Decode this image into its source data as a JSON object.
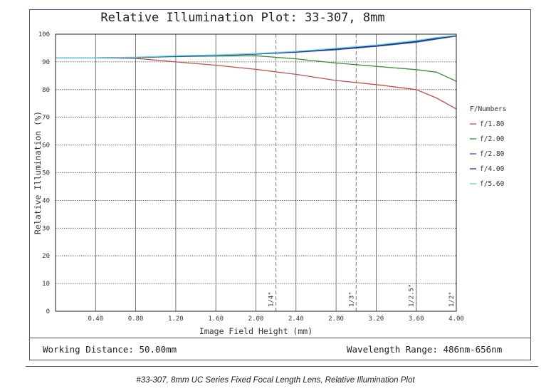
{
  "chart_data": {
    "type": "line",
    "title": "Relative Illumination Plot: 33-307, 8mm",
    "xlabel": "Image Field Height (mm)",
    "ylabel": "Relative Illumination (%)",
    "xlim": [
      0,
      4.0
    ],
    "ylim": [
      0,
      100
    ],
    "x_ticks": [
      "0.40",
      "0.80",
      "1.20",
      "1.60",
      "2.00",
      "2.40",
      "2.80",
      "3.20",
      "3.60",
      "4.00"
    ],
    "y_ticks": [
      "0",
      "10",
      "20",
      "30",
      "40",
      "50",
      "60",
      "70",
      "80",
      "90",
      "100"
    ],
    "grid": true,
    "legend_title": "F/Numbers",
    "legend_position": "right",
    "series": [
      {
        "name": "f/1.80",
        "color": "#c0504d",
        "x": [
          0,
          0.4,
          0.8,
          1.2,
          1.6,
          2.0,
          2.4,
          2.8,
          3.2,
          3.6,
          3.8,
          4.0
        ],
        "y": [
          91.5,
          91.5,
          91.3,
          90.0,
          88.8,
          87.3,
          85.5,
          83.3,
          81.8,
          80.0,
          77.0,
          73.0
        ]
      },
      {
        "name": "f/2.00",
        "color": "#3d8b3d",
        "x": [
          0,
          0.4,
          0.8,
          1.2,
          1.6,
          2.0,
          2.4,
          2.8,
          3.2,
          3.6,
          3.8,
          4.0
        ],
        "y": [
          91.5,
          91.5,
          91.6,
          91.9,
          92.1,
          92.2,
          91.1,
          89.6,
          88.4,
          87.2,
          86.3,
          83.0
        ]
      },
      {
        "name": "f/2.80",
        "color": "#3b4ab7",
        "x": [
          0,
          0.4,
          0.8,
          1.2,
          1.6,
          2.0,
          2.4,
          2.8,
          3.2,
          3.6,
          3.8,
          4.0
        ],
        "y": [
          91.5,
          91.5,
          91.6,
          92.0,
          92.3,
          92.8,
          93.5,
          94.4,
          95.6,
          97.1,
          98.2,
          99.3
        ]
      },
      {
        "name": "f/4.00",
        "color": "#1f2f6b",
        "x": [
          0,
          0.4,
          0.8,
          1.2,
          1.6,
          2.0,
          2.4,
          2.8,
          3.2,
          3.6,
          3.8,
          4.0
        ],
        "y": [
          91.5,
          91.5,
          91.6,
          92.1,
          92.4,
          92.9,
          93.6,
          94.6,
          95.8,
          97.4,
          98.5,
          99.5
        ]
      },
      {
        "name": "f/5.60",
        "color": "#5ed1e8",
        "x": [
          0,
          0.4,
          0.8,
          1.2,
          1.6,
          2.0,
          2.4,
          2.8,
          3.2,
          3.6,
          3.8,
          4.0
        ],
        "y": [
          91.5,
          91.5,
          91.7,
          92.2,
          92.5,
          93.0,
          93.8,
          94.9,
          96.1,
          97.7,
          98.8,
          99.6
        ]
      }
    ],
    "annotations": [
      {
        "label": "1/4\"",
        "x": 2.2
      },
      {
        "label": "1/3\"",
        "x": 3.0
      },
      {
        "label": "1/2.5\"",
        "x": 3.6
      },
      {
        "label": "1/2\"",
        "x": 4.0
      }
    ]
  },
  "footer": {
    "working_distance": "Working Distance: 50.00mm",
    "wavelength_range": "Wavelength Range: 486nm-656nm"
  },
  "caption": "#33-307, 8mm UC Series Fixed Focal Length Lens, Relative Illumination Plot"
}
